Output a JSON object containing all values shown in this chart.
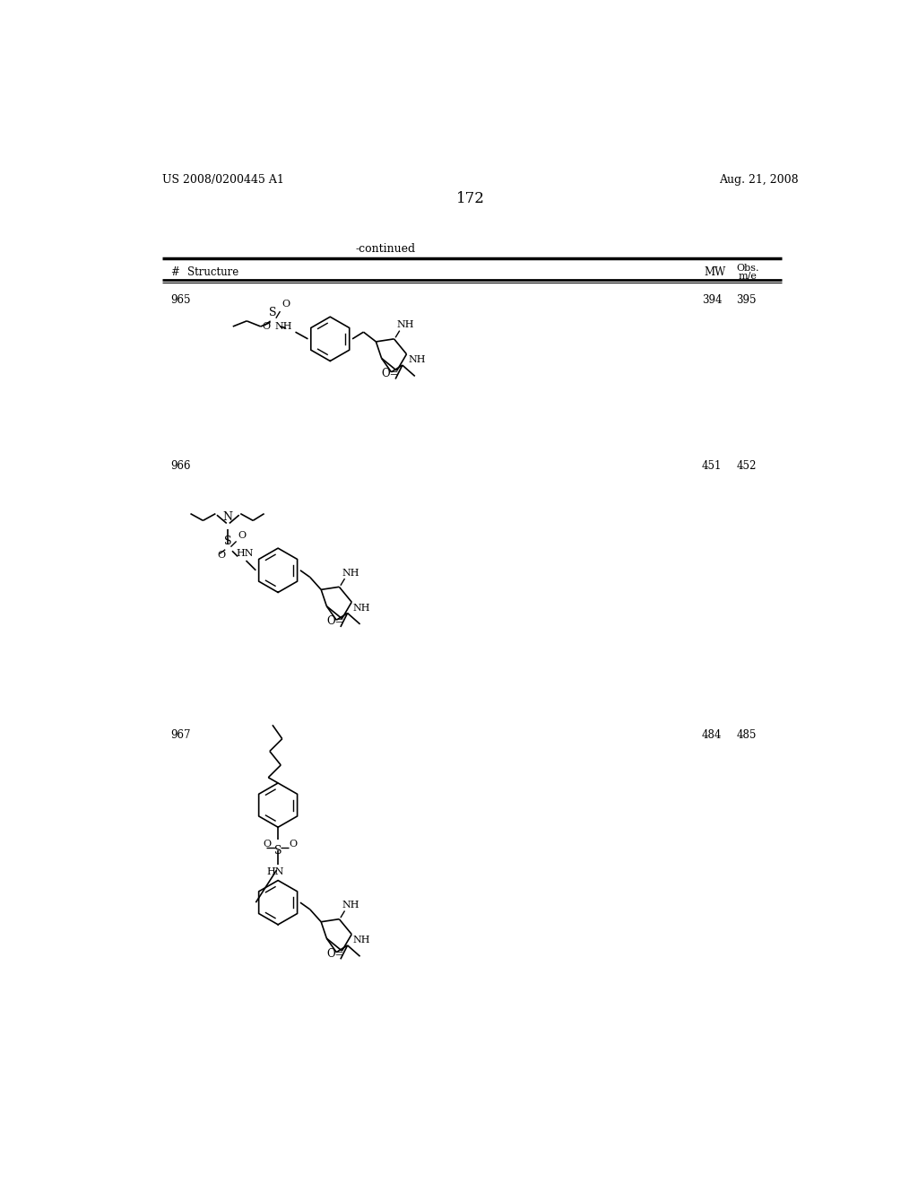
{
  "page_left": "US 2008/0200445 A1",
  "page_right": "Aug. 21, 2008",
  "page_number": "172",
  "continued_label": "-continued",
  "col_hash": "#",
  "col_structure": "Structure",
  "col_mw": "MW",
  "col_obs": "Obs.",
  "col_mie": "m/e",
  "compounds": [
    {
      "num": "965",
      "mw": "394",
      "obs": "395"
    },
    {
      "num": "966",
      "mw": "451",
      "obs": "452"
    },
    {
      "num": "967",
      "mw": "484",
      "obs": "485"
    }
  ],
  "bg_color": "#ffffff",
  "text_color": "#000000"
}
